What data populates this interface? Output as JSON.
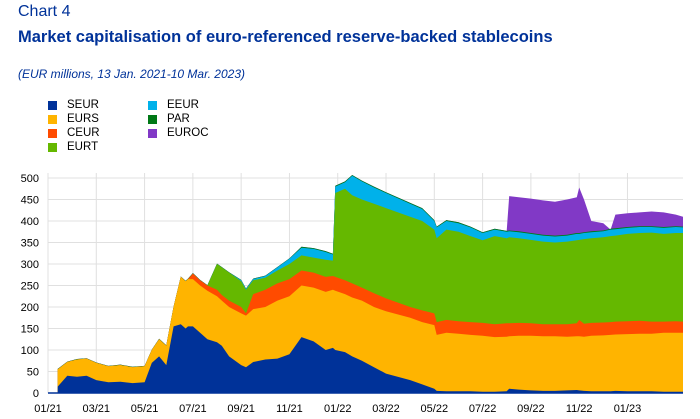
{
  "header": {
    "chart_label": "Chart 4",
    "title": "Market capitalisation of euro-referenced reserve-backed stablecoins",
    "subtitle": "(EUR millions, 13 Jan. 2021-10 Mar. 2023)"
  },
  "chart_data": {
    "type": "area",
    "stacked": true,
    "title": "Market capitalisation of euro-referenced reserve-backed stablecoins",
    "subtitle": "(EUR millions, 13 Jan. 2021-10 Mar. 2023)",
    "xlabel": "",
    "ylabel": "",
    "x_unit": "months since Jan 2021 (0 = 01/21)",
    "xlim": [
      0,
      26.3
    ],
    "ylim": [
      0,
      500
    ],
    "yticks": [
      0,
      50,
      100,
      150,
      200,
      250,
      300,
      350,
      400,
      450,
      500
    ],
    "xticks": [
      {
        "pos": 0,
        "label": "01/21"
      },
      {
        "pos": 2,
        "label": "03/21"
      },
      {
        "pos": 4,
        "label": "05/21"
      },
      {
        "pos": 6,
        "label": "07/21"
      },
      {
        "pos": 8,
        "label": "09/21"
      },
      {
        "pos": 10,
        "label": "11/21"
      },
      {
        "pos": 12,
        "label": "01/22"
      },
      {
        "pos": 14,
        "label": "03/22"
      },
      {
        "pos": 16,
        "label": "05/22"
      },
      {
        "pos": 18,
        "label": "07/22"
      },
      {
        "pos": 20,
        "label": "09/22"
      },
      {
        "pos": 22,
        "label": "11/22"
      },
      {
        "pos": 24,
        "label": "01/23"
      }
    ],
    "grid": true,
    "legend_position": "top-left",
    "note": "series values are cumulative stack tops (EUR millions) at each x",
    "x": [
      0.4,
      0.8,
      1.2,
      1.6,
      2.0,
      2.5,
      3.0,
      3.5,
      4.0,
      4.3,
      4.6,
      4.9,
      5.2,
      5.5,
      5.7,
      5.8,
      6.0,
      6.3,
      6.6,
      7.0,
      7.2,
      7.5,
      8.0,
      8.2,
      8.5,
      9.0,
      9.5,
      10.0,
      10.5,
      11.0,
      11.5,
      11.8,
      11.9,
      12.3,
      12.6,
      13.0,
      13.5,
      14.0,
      15.0,
      15.5,
      16.0,
      16.1,
      16.5,
      17.0,
      17.5,
      18.0,
      18.5,
      19.0,
      19.1,
      19.5,
      20.0,
      20.5,
      21.0,
      21.5,
      21.9,
      22.0,
      22.2,
      22.5,
      23.0,
      23.3,
      23.5,
      24.0,
      24.5,
      25.0,
      25.5,
      26.0,
      26.3
    ],
    "series": [
      {
        "name": "SEUR",
        "color": "#003299",
        "values": [
          15,
          40,
          38,
          40,
          30,
          25,
          26,
          23,
          25,
          70,
          85,
          65,
          155,
          160,
          150,
          155,
          155,
          140,
          125,
          118,
          110,
          85,
          65,
          60,
          72,
          78,
          80,
          90,
          130,
          120,
          100,
          105,
          100,
          95,
          85,
          75,
          60,
          45,
          30,
          20,
          10,
          5,
          4,
          4,
          4,
          3,
          3,
          4,
          10,
          8,
          6,
          5,
          5,
          6,
          7,
          6,
          5,
          4,
          4,
          4,
          5,
          4,
          4,
          4,
          3,
          3,
          3
        ]
      },
      {
        "name": "EURS",
        "color": "#ffb400",
        "values": [
          55,
          72,
          78,
          80,
          70,
          62,
          65,
          60,
          62,
          100,
          125,
          110,
          200,
          270,
          260,
          265,
          265,
          250,
          238,
          225,
          215,
          200,
          185,
          180,
          195,
          200,
          215,
          225,
          250,
          245,
          235,
          240,
          238,
          230,
          222,
          215,
          200,
          190,
          175,
          165,
          158,
          135,
          140,
          138,
          135,
          133,
          130,
          131,
          132,
          133,
          133,
          132,
          132,
          131,
          132,
          132,
          131,
          133,
          134,
          135,
          136,
          137,
          138,
          138,
          140,
          140,
          140
        ]
      },
      {
        "name": "CEUR",
        "color": "#ff4b00",
        "values": [
          55,
          72,
          78,
          80,
          70,
          62,
          65,
          60,
          62,
          100,
          125,
          110,
          200,
          270,
          260,
          265,
          278,
          262,
          250,
          240,
          228,
          215,
          200,
          185,
          230,
          240,
          255,
          265,
          285,
          280,
          270,
          272,
          270,
          262,
          255,
          245,
          232,
          220,
          200,
          192,
          185,
          165,
          170,
          167,
          165,
          163,
          160,
          162,
          162,
          163,
          162,
          160,
          160,
          160,
          162,
          170,
          161,
          163,
          164,
          165,
          166,
          167,
          168,
          166,
          166,
          167,
          166
        ]
      },
      {
        "name": "EURT",
        "color": "#65b800",
        "values": [
          55,
          72,
          78,
          80,
          70,
          62,
          65,
          60,
          62,
          100,
          125,
          110,
          200,
          270,
          260,
          265,
          278,
          262,
          250,
          300,
          292,
          280,
          260,
          240,
          262,
          268,
          285,
          300,
          320,
          315,
          310,
          308,
          465,
          475,
          460,
          450,
          440,
          430,
          410,
          400,
          380,
          360,
          380,
          375,
          365,
          355,
          365,
          360,
          362,
          360,
          356,
          352,
          350,
          352,
          355,
          356,
          358,
          360,
          362,
          365,
          366,
          370,
          372,
          373,
          370,
          372,
          372
        ]
      },
      {
        "name": "EEUR",
        "color": "#00b1ea",
        "values": [
          55,
          72,
          78,
          80,
          70,
          62,
          65,
          60,
          62,
          100,
          125,
          110,
          200,
          270,
          260,
          265,
          278,
          262,
          250,
          300,
          292,
          280,
          262,
          242,
          265,
          272,
          292,
          312,
          338,
          335,
          328,
          322,
          480,
          490,
          505,
          492,
          478,
          465,
          440,
          428,
          400,
          385,
          400,
          395,
          385,
          372,
          380,
          375,
          376,
          374,
          370,
          366,
          364,
          366,
          370,
          370,
          372,
          374,
          376,
          380,
          381,
          384,
          386,
          386,
          384,
          386,
          385
        ]
      },
      {
        "name": "PAR",
        "color": "#007816",
        "values": [
          56,
          73,
          79,
          81,
          71,
          63,
          66,
          61,
          63,
          101,
          126,
          111,
          201,
          271,
          261,
          266,
          279,
          263,
          251,
          301,
          293,
          281,
          263,
          243,
          266,
          273,
          293,
          313,
          340,
          337,
          330,
          324,
          482,
          492,
          507,
          494,
          480,
          467,
          442,
          430,
          402,
          387,
          402,
          397,
          387,
          374,
          382,
          377,
          378,
          376,
          372,
          368,
          366,
          368,
          372,
          372,
          374,
          376,
          378,
          382,
          383,
          386,
          388,
          388,
          386,
          388,
          387
        ]
      },
      {
        "name": "EUROC",
        "color": "#8139c6",
        "values": [
          56,
          73,
          79,
          81,
          71,
          63,
          66,
          61,
          63,
          101,
          126,
          111,
          201,
          271,
          261,
          266,
          279,
          263,
          251,
          301,
          293,
          281,
          263,
          243,
          266,
          273,
          293,
          313,
          340,
          337,
          330,
          324,
          482,
          492,
          507,
          494,
          480,
          467,
          442,
          430,
          402,
          387,
          402,
          397,
          387,
          374,
          382,
          377,
          458,
          455,
          452,
          448,
          445,
          450,
          455,
          478,
          450,
          400,
          395,
          380,
          415,
          418,
          420,
          422,
          420,
          415,
          410
        ]
      }
    ]
  }
}
